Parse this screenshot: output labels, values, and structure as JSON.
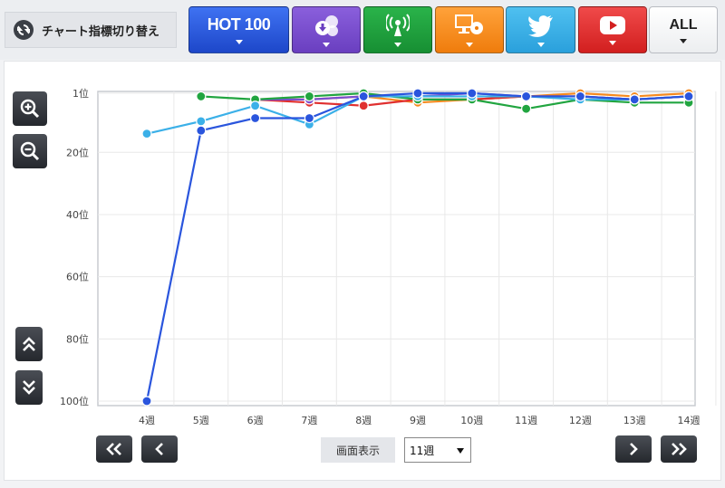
{
  "toolbar": {
    "switch_label": "チャート指標切り替え",
    "tabs": [
      {
        "name": "hot100",
        "label": "HOT 100",
        "icon": "hot100-text",
        "color": "#2a55dd"
      },
      {
        "name": "download",
        "label": "",
        "icon": "download-cloud-icon",
        "color": "#7a4fd0"
      },
      {
        "name": "radio",
        "label": "",
        "icon": "radio-antenna-icon",
        "color": "#21a540"
      },
      {
        "name": "pc",
        "label": "",
        "icon": "pc-monitor-cd-icon",
        "color": "#f68a1e"
      },
      {
        "name": "twitter",
        "label": "",
        "icon": "twitter-bird-icon",
        "color": "#3bb0e8"
      },
      {
        "name": "youtube",
        "label": "",
        "icon": "youtube-play-icon",
        "color": "#e03030"
      },
      {
        "name": "all",
        "label": "ALL",
        "icon": "",
        "color": "#ffffff"
      }
    ]
  },
  "controls": {
    "zoom_in_icon": "zoom-in-icon",
    "zoom_out_icon": "zoom-out-icon",
    "scroll_up_icon": "double-chevron-up-icon",
    "scroll_down_icon": "double-chevron-down-icon",
    "first_icon": "double-chevron-left-icon",
    "prev_icon": "chevron-left-icon",
    "next_icon": "chevron-right-icon",
    "last_icon": "double-chevron-right-icon",
    "view_label": "画面表示",
    "view_value": "11週"
  },
  "chart_data": {
    "type": "line",
    "categories": [
      "4週",
      "5週",
      "6週",
      "7週",
      "8週",
      "9週",
      "10週",
      "11週",
      "12週",
      "13週",
      "14週"
    ],
    "y_axis": {
      "min": 1,
      "max": 100,
      "inverted": true,
      "ticks": [
        1,
        20,
        40,
        60,
        80,
        100
      ],
      "tick_labels": [
        "1位",
        "20位",
        "40位",
        "60位",
        "80位",
        "100位"
      ]
    },
    "grid": true,
    "series": [
      {
        "color": "#f68a1e",
        "values": [
          null,
          null,
          3,
          3,
          2,
          4,
          3,
          2,
          1,
          2,
          1
        ]
      },
      {
        "color": "#e03030",
        "values": [
          null,
          null,
          3,
          4,
          5,
          3,
          3,
          2,
          2,
          3,
          2
        ]
      },
      {
        "color": "#7a4fd0",
        "values": [
          null,
          null,
          3,
          3,
          2,
          2,
          1,
          2,
          2,
          3,
          2
        ]
      },
      {
        "color": "#21a540",
        "values": [
          null,
          2,
          3,
          2,
          1,
          3,
          3,
          6,
          3,
          4,
          4
        ]
      },
      {
        "color": "#3bb0e8",
        "values": [
          14,
          10,
          5,
          11,
          2,
          2,
          2,
          2,
          3,
          3,
          2
        ]
      },
      {
        "color": "#2a55dd",
        "values": [
          100,
          13,
          9,
          9,
          2,
          1,
          1,
          2,
          2,
          3,
          2
        ]
      }
    ]
  }
}
